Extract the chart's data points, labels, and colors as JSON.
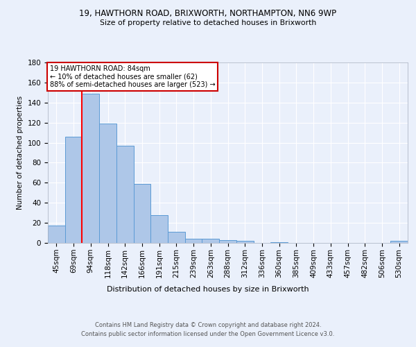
{
  "title1": "19, HAWTHORN ROAD, BRIXWORTH, NORTHAMPTON, NN6 9WP",
  "title2": "Size of property relative to detached houses in Brixworth",
  "xlabel": "Distribution of detached houses by size in Brixworth",
  "ylabel": "Number of detached properties",
  "bar_labels": [
    "45sqm",
    "69sqm",
    "94sqm",
    "118sqm",
    "142sqm",
    "166sqm",
    "191sqm",
    "215sqm",
    "239sqm",
    "263sqm",
    "288sqm",
    "312sqm",
    "336sqm",
    "360sqm",
    "385sqm",
    "409sqm",
    "433sqm",
    "457sqm",
    "482sqm",
    "506sqm",
    "530sqm"
  ],
  "bar_values": [
    17,
    106,
    149,
    119,
    97,
    59,
    28,
    11,
    4,
    4,
    3,
    2,
    0,
    1,
    0,
    0,
    0,
    0,
    0,
    0,
    2
  ],
  "bar_color": "#aec7e8",
  "bar_edge_color": "#5b9bd5",
  "red_line_x": 1.5,
  "annotation_title": "19 HAWTHORN ROAD: 84sqm",
  "annotation_line1": "← 10% of detached houses are smaller (62)",
  "annotation_line2": "88% of semi-detached houses are larger (523) →",
  "footer1": "Contains HM Land Registry data © Crown copyright and database right 2024.",
  "footer2": "Contains public sector information licensed under the Open Government Licence v3.0.",
  "ylim": [
    0,
    180
  ],
  "bg_color": "#eaf0fb",
  "plot_bg_color": "#eaf0fb",
  "grid_color": "#ffffff",
  "annotation_box_color": "#ffffff",
  "annotation_box_edge": "#cc0000"
}
